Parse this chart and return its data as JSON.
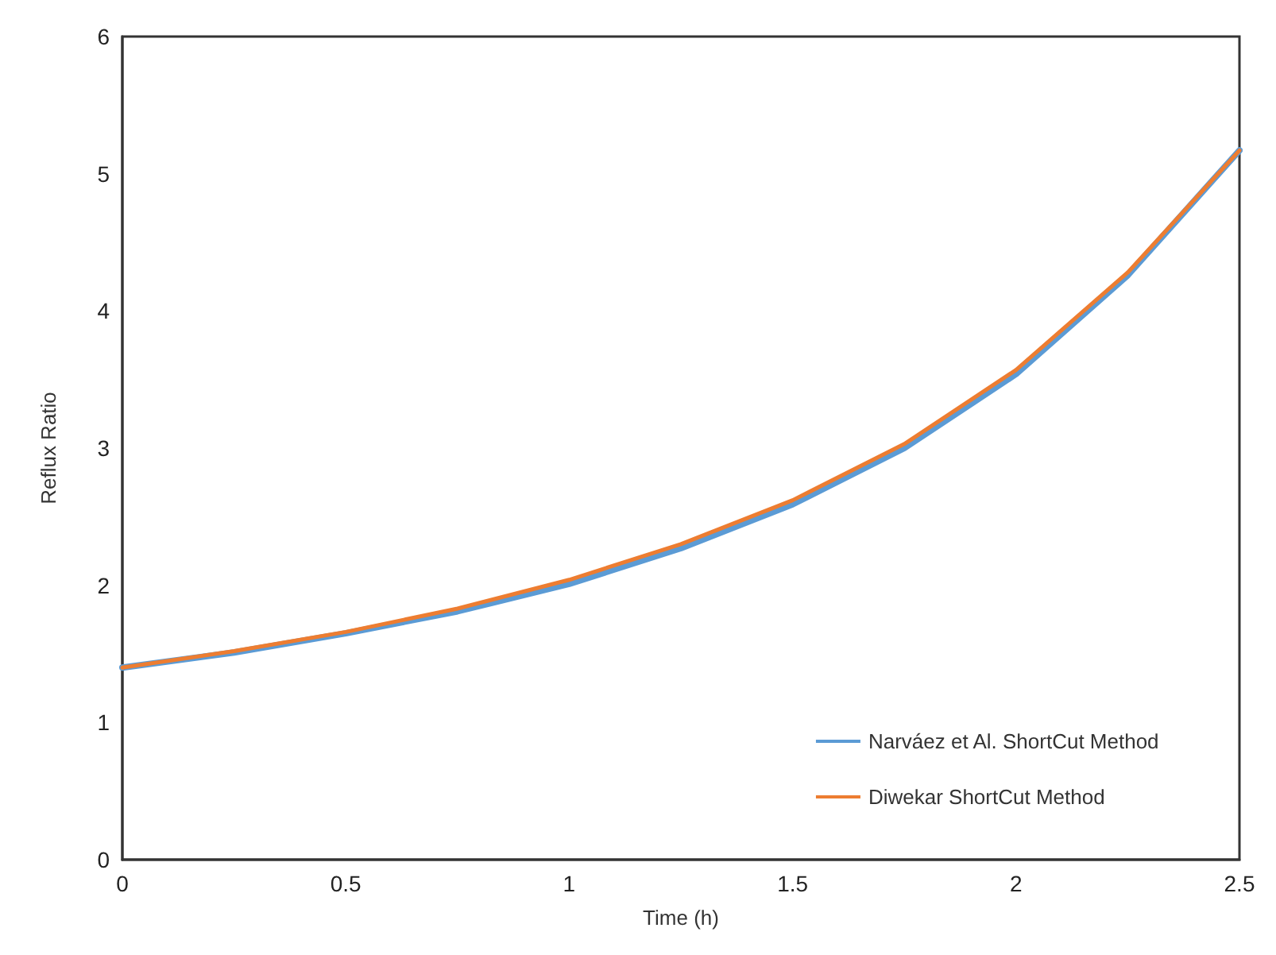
{
  "chart_data": {
    "type": "line",
    "xlabel": "Time (h)",
    "ylabel": "Reflux Ratio",
    "x": [
      0,
      0.25,
      0.5,
      0.75,
      1,
      1.25,
      1.5,
      1.75,
      2,
      2.25,
      2.5
    ],
    "series": [
      {
        "name": "Narváez et Al. ShortCut Method",
        "color": "#5b9bd5",
        "values": [
          1.4,
          1.51,
          1.65,
          1.81,
          2.01,
          2.27,
          2.59,
          3.0,
          3.54,
          4.26,
          5.17
        ]
      },
      {
        "name": "Diwekar ShortCut Method",
        "color": "#ed7d31",
        "values": [
          1.4,
          1.52,
          1.66,
          1.83,
          2.04,
          2.3,
          2.62,
          3.03,
          3.57,
          4.28,
          5.17
        ]
      }
    ],
    "xlim": [
      0,
      2.5
    ],
    "xticks": [
      0,
      0.5,
      1,
      1.5,
      2,
      2.5
    ],
    "ylim": [
      0,
      6
    ],
    "yticks": [
      0,
      1,
      2,
      3,
      4,
      5,
      6
    ],
    "grid": false,
    "legend": "bottom right",
    "marker": "none",
    "line_style": "solid"
  }
}
